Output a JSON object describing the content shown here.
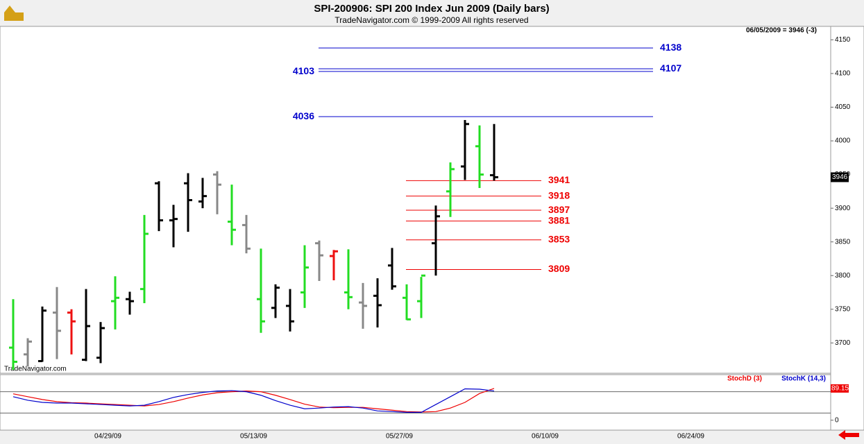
{
  "chart_data": [
    {
      "type": "ohlc",
      "title": "SPI-200906:  SPI 200 Index Jun 2009  (Daily bars)",
      "subtitle": "TradeNavigator.com © 1999-2009 All rights reserved",
      "info": "06/05/2009 = 3946 (-3)",
      "watermark": "TradeNavigator.com",
      "x_labels": [
        "04/29/09",
        "05/13/09",
        "05/27/09",
        "06/10/09",
        "06/24/09"
      ],
      "open": [
        3693,
        3683,
        3673,
        3745,
        3745,
        3675,
        3678,
        3762,
        3765,
        3780,
        3937,
        3882,
        3937,
        3910,
        3950,
        3880,
        3875,
        3765,
        3752,
        3755,
        3775,
        3848,
        3829,
        3775,
        3760,
        3770,
        3815,
        3767,
        3762,
        3848,
        3925,
        3962,
        3992,
        3949
      ],
      "high": [
        3765,
        3707,
        3754,
        3783,
        3750,
        3780,
        3731,
        3799,
        3776,
        3890,
        3940,
        3905,
        3952,
        3945,
        3955,
        3935,
        3890,
        3840,
        3787,
        3780,
        3845,
        3852,
        3838,
        3839,
        3789,
        3796,
        3841,
        3787,
        3798,
        3904,
        3968,
        4031,
        4023,
        4025
      ],
      "low": [
        3660,
        3665,
        3672,
        3676,
        3683,
        3673,
        3670,
        3720,
        3742,
        3759,
        3866,
        3842,
        3865,
        3900,
        3891,
        3845,
        3833,
        3715,
        3737,
        3717,
        3752,
        3792,
        3793,
        3750,
        3721,
        3723,
        3779,
        3734,
        3737,
        3800,
        3887,
        3942,
        3930,
        3941
      ],
      "close": [
        3672,
        3702,
        3748,
        3718,
        3732,
        3725,
        3722,
        3767,
        3762,
        3862,
        3882,
        3884,
        3912,
        3918,
        3935,
        3868,
        3840,
        3732,
        3782,
        3732,
        3812,
        3830,
        3836,
        3768,
        3755,
        3756,
        3784,
        3735,
        3800,
        3888,
        3958,
        4025,
        3950,
        3946
      ],
      "colors": [
        "#22dd22",
        "#888888",
        "#000000",
        "#888888",
        "#ee1111",
        "#000000",
        "#000000",
        "#22dd22",
        "#000000",
        "#22dd22",
        "#000000",
        "#000000",
        "#000000",
        "#000000",
        "#888888",
        "#22dd22",
        "#888888",
        "#22dd22",
        "#000000",
        "#000000",
        "#22dd22",
        "#888888",
        "#ee1111",
        "#22dd22",
        "#888888",
        "#000000",
        "#000000",
        "#22dd22",
        "#22dd22",
        "#000000",
        "#22dd22",
        "#000000",
        "#22dd22",
        "#000000"
      ],
      "upper_levels": {
        "color": "#0000cc",
        "items": [
          {
            "value": 4138,
            "label_side": "right"
          },
          {
            "value": 4107,
            "label_side": "right"
          },
          {
            "value": 4103,
            "label_side": "left"
          },
          {
            "value": 4036,
            "label_side": "left"
          }
        ]
      },
      "lower_levels": {
        "color": "#ee0000",
        "items": [
          {
            "value": 3941,
            "label_side": "right"
          },
          {
            "value": 3918,
            "label_side": "right"
          },
          {
            "value": 3897,
            "label_side": "right"
          },
          {
            "value": 3881,
            "label_side": "right"
          },
          {
            "value": 3853,
            "label_side": "right"
          },
          {
            "value": 3809,
            "label_side": "right"
          }
        ]
      },
      "ylim": [
        3655,
        4170
      ],
      "yticks": [
        3700,
        3750,
        3800,
        3850,
        3900,
        3950,
        4000,
        4050,
        4100,
        4150
      ]
    },
    {
      "type": "line",
      "series": [
        {
          "name": "StochD (3)",
          "color": "#ee0000",
          "values": [
            74,
            66,
            58,
            52,
            49,
            48,
            46,
            44,
            42,
            40,
            44,
            52,
            62,
            71,
            77,
            80,
            82,
            80,
            70,
            58,
            45,
            37,
            35,
            36,
            36,
            32,
            28,
            24,
            23,
            24,
            34,
            50,
            75,
            89.15
          ],
          "value_labels": [
            null,
            null,
            null,
            null,
            null,
            null,
            null,
            null,
            null,
            null,
            null,
            null,
            null,
            null,
            null,
            null,
            null,
            null,
            null,
            null,
            null,
            null,
            null,
            null,
            null,
            null,
            null,
            null,
            null,
            null,
            null,
            null,
            null,
            "89.15"
          ]
        },
        {
          "name": "StochK (14,3)",
          "color": "#0000cc",
          "values": [
            66,
            56,
            50,
            48,
            48,
            46,
            44,
            42,
            40,
            42,
            52,
            64,
            72,
            78,
            82,
            83,
            80,
            70,
            55,
            42,
            32,
            34,
            37,
            38,
            34,
            26,
            24,
            22,
            22,
            44,
            66,
            88,
            87,
            82
          ]
        }
      ],
      "levels": [
        20,
        80
      ],
      "ylim": [
        -28,
        128
      ],
      "yticks": [
        0
      ]
    }
  ]
}
